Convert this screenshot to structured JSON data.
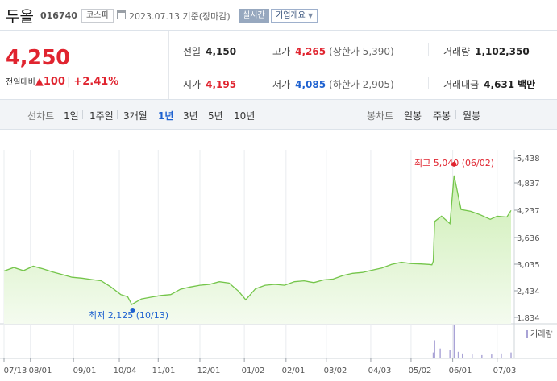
{
  "stock": {
    "name": "두올",
    "code": "016740",
    "market": "코스피",
    "date_text": "2023.07.13 기준(장마감)",
    "realtime_label": "실시간",
    "company_label": "기업개요"
  },
  "price": {
    "current": "4,250",
    "diff_label": "전일대비",
    "diff_arrow": "▲",
    "diff_value": "100",
    "diff_rate": "+2.41%"
  },
  "quotes": {
    "prev_close": {
      "label": "전일",
      "value": "4,150"
    },
    "high": {
      "label": "고가",
      "value": "4,265",
      "sub": "(상한가 5,390)"
    },
    "volume": {
      "label": "거래량",
      "value": "1,102,350"
    },
    "open": {
      "label": "시가",
      "value": "4,195"
    },
    "low": {
      "label": "저가",
      "value": "4,085",
      "sub": "(하한가 2,905)"
    },
    "amount": {
      "label": "거래대금",
      "value": "4,631",
      "unit": "백만"
    }
  },
  "tabs": {
    "line_label": "선차트",
    "line_periods": [
      "1일",
      "1주일",
      "3개월",
      "1년",
      "3년",
      "5년",
      "10년"
    ],
    "active_period": "1년",
    "candle_label": "봉차트",
    "candle_periods": [
      "일봉",
      "주봉",
      "월봉"
    ]
  },
  "colors": {
    "up": "#e0242f",
    "down": "#1f62d0",
    "line": "#74c54a",
    "volume": "#a9a3d6"
  },
  "chart_data": {
    "type": "area",
    "title": "",
    "y_ticks": [
      "5,438",
      "4,837",
      "4,237",
      "3,636",
      "3,035",
      "2,434",
      "1,834"
    ],
    "ylim": [
      1834,
      5438
    ],
    "x_ticks": [
      "07/13",
      "08/01",
      "09/01",
      "10/04",
      "11/01",
      "12/01",
      "01/02",
      "02/01",
      "03/02",
      "04/03",
      "05/02",
      "06/01",
      "07/03"
    ],
    "high_label": "최고 5,040 (06/02)",
    "low_label": "최저 2,125 (10/13)",
    "volume_legend": "거래량",
    "series": [
      {
        "points": [
          [
            "2022-07-13",
            2880
          ],
          [
            "2022-07-20",
            2960
          ],
          [
            "2022-07-27",
            2890
          ],
          [
            "2022-08-03",
            2990
          ],
          [
            "2022-08-10",
            2930
          ],
          [
            "2022-08-17",
            2860
          ],
          [
            "2022-08-24",
            2800
          ],
          [
            "2022-08-31",
            2740
          ],
          [
            "2022-09-07",
            2720
          ],
          [
            "2022-09-14",
            2690
          ],
          [
            "2022-09-21",
            2660
          ],
          [
            "2022-09-28",
            2520
          ],
          [
            "2022-10-05",
            2350
          ],
          [
            "2022-10-10",
            2300
          ],
          [
            "2022-10-13",
            2125
          ],
          [
            "2022-10-20",
            2250
          ],
          [
            "2022-10-27",
            2290
          ],
          [
            "2022-11-03",
            2330
          ],
          [
            "2022-11-10",
            2350
          ],
          [
            "2022-11-17",
            2470
          ],
          [
            "2022-11-24",
            2520
          ],
          [
            "2022-12-01",
            2560
          ],
          [
            "2022-12-08",
            2580
          ],
          [
            "2022-12-15",
            2640
          ],
          [
            "2022-12-22",
            2610
          ],
          [
            "2022-12-29",
            2420
          ],
          [
            "2023-01-03",
            2230
          ],
          [
            "2023-01-10",
            2480
          ],
          [
            "2023-01-17",
            2560
          ],
          [
            "2023-01-24",
            2580
          ],
          [
            "2023-01-31",
            2560
          ],
          [
            "2023-02-07",
            2640
          ],
          [
            "2023-02-14",
            2660
          ],
          [
            "2023-02-21",
            2620
          ],
          [
            "2023-02-28",
            2680
          ],
          [
            "2023-03-07",
            2700
          ],
          [
            "2023-03-14",
            2780
          ],
          [
            "2023-03-21",
            2830
          ],
          [
            "2023-03-28",
            2850
          ],
          [
            "2023-04-04",
            2900
          ],
          [
            "2023-04-11",
            2950
          ],
          [
            "2023-04-18",
            3030
          ],
          [
            "2023-04-25",
            3080
          ],
          [
            "2023-05-02",
            3050
          ],
          [
            "2023-05-09",
            3040
          ],
          [
            "2023-05-15",
            3030
          ],
          [
            "2023-05-17",
            3020
          ],
          [
            "2023-05-18",
            3100
          ],
          [
            "2023-05-19",
            4000
          ],
          [
            "2023-05-24",
            4120
          ],
          [
            "2023-05-30",
            3950
          ],
          [
            "2023-06-02",
            5040
          ],
          [
            "2023-06-07",
            4270
          ],
          [
            "2023-06-14",
            4230
          ],
          [
            "2023-06-21",
            4150
          ],
          [
            "2023-06-28",
            4050
          ],
          [
            "2023-07-03",
            4120
          ],
          [
            "2023-07-10",
            4100
          ],
          [
            "2023-07-13",
            4250
          ]
        ]
      }
    ],
    "volume": [
      [
        "2023-05-18",
        0.18
      ],
      [
        "2023-05-19",
        0.55
      ],
      [
        "2023-05-23",
        0.3
      ],
      [
        "2023-05-30",
        0.25
      ],
      [
        "2023-06-02",
        1.0
      ],
      [
        "2023-06-05",
        0.2
      ],
      [
        "2023-06-08",
        0.15
      ],
      [
        "2023-06-15",
        0.12
      ],
      [
        "2023-06-22",
        0.1
      ],
      [
        "2023-06-29",
        0.12
      ],
      [
        "2023-07-06",
        0.15
      ],
      [
        "2023-07-13",
        0.18
      ]
    ]
  }
}
